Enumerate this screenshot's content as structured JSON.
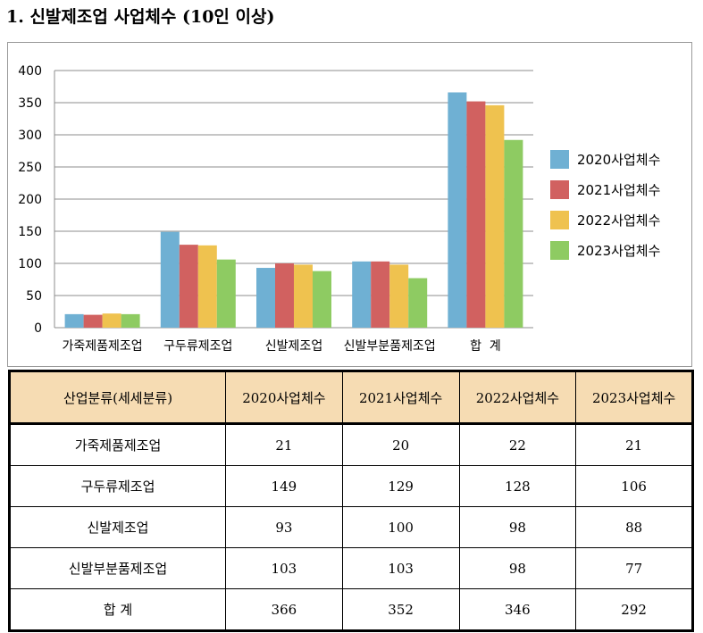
{
  "heading": "1. 신발제조업 사업체수 (10인 이상)",
  "chart_data": {
    "type": "bar",
    "categories": [
      "가죽제품제조업",
      "구두류제조업",
      "신발제조업",
      "신발부분품제조업",
      "합  계"
    ],
    "series": [
      {
        "name": "2020사업체수",
        "values": [
          21,
          149,
          93,
          103,
          366
        ],
        "color": "#6fb0d3"
      },
      {
        "name": "2021사업체수",
        "values": [
          20,
          129,
          100,
          103,
          352
        ],
        "color": "#d16160"
      },
      {
        "name": "2022사업체수",
        "values": [
          22,
          128,
          98,
          98,
          346
        ],
        "color": "#efc24f"
      },
      {
        "name": "2023사업체수",
        "values": [
          21,
          106,
          88,
          77,
          292
        ],
        "color": "#8ecb62"
      }
    ],
    "ylim": [
      0,
      400
    ],
    "yticks": [
      "0",
      "50",
      "100",
      "150",
      "200",
      "250",
      "300",
      "350",
      "400"
    ],
    "grid": true,
    "legend_position": "right"
  },
  "table": {
    "headers": [
      "산업분류(세세분류)",
      "2020사업체수",
      "2021사업체수",
      "2022사업체수",
      "2023사업체수"
    ],
    "rows": [
      [
        "가죽제품제조업",
        "21",
        "20",
        "22",
        "21"
      ],
      [
        "구두류제조업",
        "149",
        "129",
        "128",
        "106"
      ],
      [
        "신발제조업",
        "93",
        "100",
        "98",
        "88"
      ],
      [
        "신발부분품제조업",
        "103",
        "103",
        "98",
        "77"
      ],
      [
        "합  계",
        "366",
        "352",
        "346",
        "292"
      ]
    ],
    "header_bg": "#f6dcb3"
  }
}
